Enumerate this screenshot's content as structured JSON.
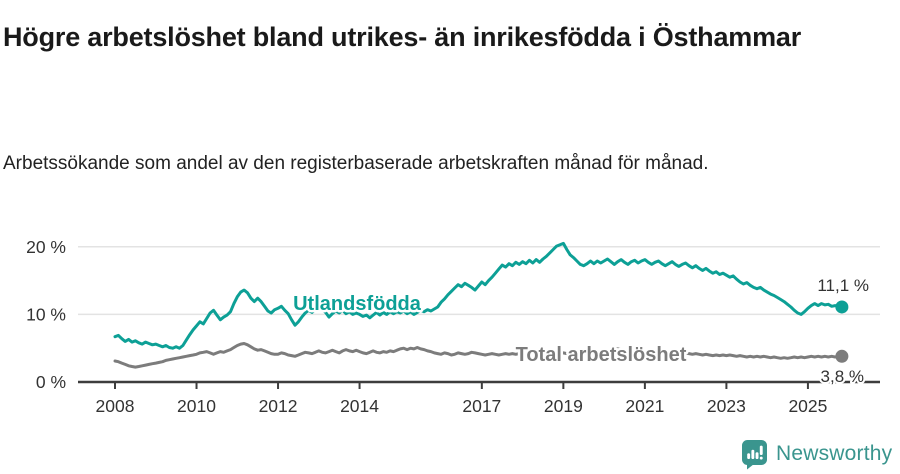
{
  "header": {
    "title": "Högre arbetslöshet bland utrikes- än inrikesfödda i Östhammar",
    "subtitle": "Arbetssökande som andel av den registerbaserade arbetskraften månad för månad."
  },
  "footer": {
    "brand": "Newsworthy"
  },
  "colors": {
    "accent_teal": "#0da096",
    "line_gray": "#7c7c7c",
    "axis": "#3d3d3d",
    "grid": "#e3e3e3",
    "tick_text": "#333333",
    "value_text": "#333333",
    "brand_teal": "#3a958e",
    "background": "#ffffff"
  },
  "chart_data": {
    "type": "line",
    "title": "Högre arbetslöshet bland utrikes- än inrikesfödda i Östhammar",
    "subtitle": "Arbetssökande som andel av den registerbaserade arbetskraften månad för månad.",
    "x_unit": "month",
    "x_start": "2008-01",
    "x_end": "2025-11",
    "x_tick_years": [
      2008,
      2010,
      2012,
      2014,
      2017,
      2019,
      2021,
      2023,
      2025
    ],
    "y_ticks": [
      {
        "value": 0,
        "label": "0 %"
      },
      {
        "value": 10,
        "label": "10 %"
      },
      {
        "value": 20,
        "label": "20 %"
      }
    ],
    "ylim": [
      0,
      22
    ],
    "grid": "horizontal",
    "legend": "inline-labels",
    "series": [
      {
        "name": "Utlandsfödda",
        "color": "#0da096",
        "end_value": 11.1,
        "end_label": "11,1 %",
        "values": [
          6.7,
          6.9,
          6.4,
          6.0,
          6.3,
          5.9,
          6.1,
          5.8,
          5.6,
          5.9,
          5.7,
          5.5,
          5.6,
          5.4,
          5.2,
          5.4,
          5.1,
          5.0,
          5.2,
          5.0,
          5.4,
          6.2,
          7.0,
          7.7,
          8.3,
          8.9,
          8.6,
          9.4,
          10.2,
          10.6,
          9.9,
          9.2,
          9.6,
          9.9,
          10.4,
          11.6,
          12.6,
          13.3,
          13.6,
          13.2,
          12.4,
          11.9,
          12.4,
          11.9,
          11.2,
          10.5,
          10.2,
          10.7,
          10.9,
          11.2,
          10.6,
          10.1,
          9.2,
          8.4,
          8.9,
          9.6,
          10.2,
          10.6,
          10.3,
          10.8,
          11.1,
          10.7,
          10.3,
          9.6,
          10.1,
          10.5,
          10.2,
          10.6,
          10.1,
          10.4,
          10.0,
          10.2,
          10.0,
          9.7,
          9.9,
          9.5,
          9.9,
          10.3,
          9.9,
          10.3,
          10.0,
          10.4,
          10.1,
          10.4,
          10.2,
          10.5,
          10.1,
          10.4,
          10.0,
          10.3,
          10.6,
          10.4,
          10.7,
          10.5,
          10.8,
          11.1,
          11.8,
          12.3,
          12.9,
          13.4,
          13.9,
          14.4,
          14.1,
          14.6,
          14.3,
          14.0,
          13.6,
          14.2,
          14.8,
          14.4,
          15.0,
          15.5,
          16.1,
          16.7,
          17.3,
          17.0,
          17.5,
          17.2,
          17.7,
          17.4,
          17.8,
          17.5,
          18.0,
          17.6,
          18.1,
          17.7,
          18.2,
          18.6,
          19.1,
          19.6,
          20.1,
          20.3,
          20.5,
          19.6,
          18.8,
          18.4,
          17.9,
          17.4,
          17.2,
          17.5,
          17.9,
          17.5,
          17.9,
          17.6,
          17.9,
          18.2,
          17.8,
          17.4,
          17.8,
          18.1,
          17.7,
          17.4,
          17.8,
          18.0,
          17.6,
          17.9,
          18.1,
          17.7,
          17.4,
          17.7,
          17.9,
          17.5,
          17.2,
          17.5,
          17.8,
          17.4,
          17.1,
          17.4,
          17.6,
          17.2,
          16.9,
          17.2,
          16.8,
          16.5,
          16.8,
          16.4,
          16.1,
          16.3,
          15.9,
          16.1,
          15.8,
          15.5,
          15.7,
          15.2,
          14.8,
          14.5,
          14.7,
          14.3,
          14.0,
          13.8,
          14.0,
          13.6,
          13.3,
          13.0,
          12.8,
          12.5,
          12.2,
          11.9,
          11.5,
          11.1,
          10.6,
          10.2,
          10.0,
          10.4,
          10.9,
          11.3,
          11.6,
          11.3,
          11.6,
          11.4,
          11.5,
          11.2,
          11.3,
          11.2,
          11.1
        ]
      },
      {
        "name": "Total arbetslöshet",
        "color": "#7c7c7c",
        "end_value": 3.8,
        "end_label": "3,8 %",
        "values": [
          3.1,
          3.0,
          2.8,
          2.6,
          2.4,
          2.3,
          2.2,
          2.3,
          2.4,
          2.5,
          2.6,
          2.7,
          2.8,
          2.9,
          3.0,
          3.2,
          3.3,
          3.4,
          3.5,
          3.6,
          3.7,
          3.8,
          3.9,
          4.0,
          4.1,
          4.3,
          4.4,
          4.5,
          4.3,
          4.1,
          4.3,
          4.5,
          4.4,
          4.6,
          4.8,
          5.1,
          5.4,
          5.6,
          5.7,
          5.5,
          5.2,
          4.9,
          4.7,
          4.8,
          4.6,
          4.4,
          4.2,
          4.1,
          4.1,
          4.3,
          4.2,
          4.0,
          3.9,
          3.8,
          4.0,
          4.2,
          4.4,
          4.3,
          4.2,
          4.4,
          4.6,
          4.4,
          4.3,
          4.5,
          4.7,
          4.5,
          4.3,
          4.6,
          4.8,
          4.6,
          4.5,
          4.7,
          4.5,
          4.3,
          4.2,
          4.4,
          4.6,
          4.4,
          4.3,
          4.5,
          4.4,
          4.6,
          4.5,
          4.7,
          4.9,
          5.0,
          4.8,
          5.0,
          4.9,
          5.1,
          4.9,
          4.8,
          4.6,
          4.5,
          4.3,
          4.2,
          4.1,
          4.3,
          4.2,
          4.0,
          4.1,
          4.3,
          4.2,
          4.1,
          4.2,
          4.4,
          4.3,
          4.2,
          4.1,
          4.0,
          4.1,
          4.2,
          4.1,
          4.0,
          4.1,
          4.2,
          4.1,
          4.2,
          4.1,
          4.2,
          4.1,
          4.0,
          4.1,
          4.0,
          4.1,
          4.2,
          4.1,
          4.2,
          4.3,
          4.2,
          4.3,
          4.2,
          4.3,
          4.2,
          4.3,
          4.2,
          4.3,
          4.4,
          4.3,
          4.4,
          4.3,
          4.4,
          4.5,
          4.4,
          4.5,
          4.6,
          4.8,
          5.0,
          4.9,
          4.8,
          4.7,
          4.6,
          4.5,
          4.4,
          4.5,
          4.4,
          4.5,
          4.4,
          4.3,
          4.4,
          4.3,
          4.2,
          4.3,
          4.2,
          4.3,
          4.2,
          4.1,
          4.2,
          4.3,
          4.2,
          4.1,
          4.2,
          4.1,
          4.0,
          4.1,
          4.0,
          3.9,
          4.0,
          3.9,
          4.0,
          3.9,
          4.0,
          3.9,
          3.8,
          3.9,
          3.8,
          3.7,
          3.8,
          3.7,
          3.8,
          3.7,
          3.8,
          3.7,
          3.6,
          3.7,
          3.6,
          3.5,
          3.6,
          3.5,
          3.6,
          3.7,
          3.6,
          3.7,
          3.6,
          3.7,
          3.8,
          3.7,
          3.8,
          3.7,
          3.8,
          3.7,
          3.8,
          3.7,
          3.8,
          3.8
        ]
      }
    ]
  }
}
